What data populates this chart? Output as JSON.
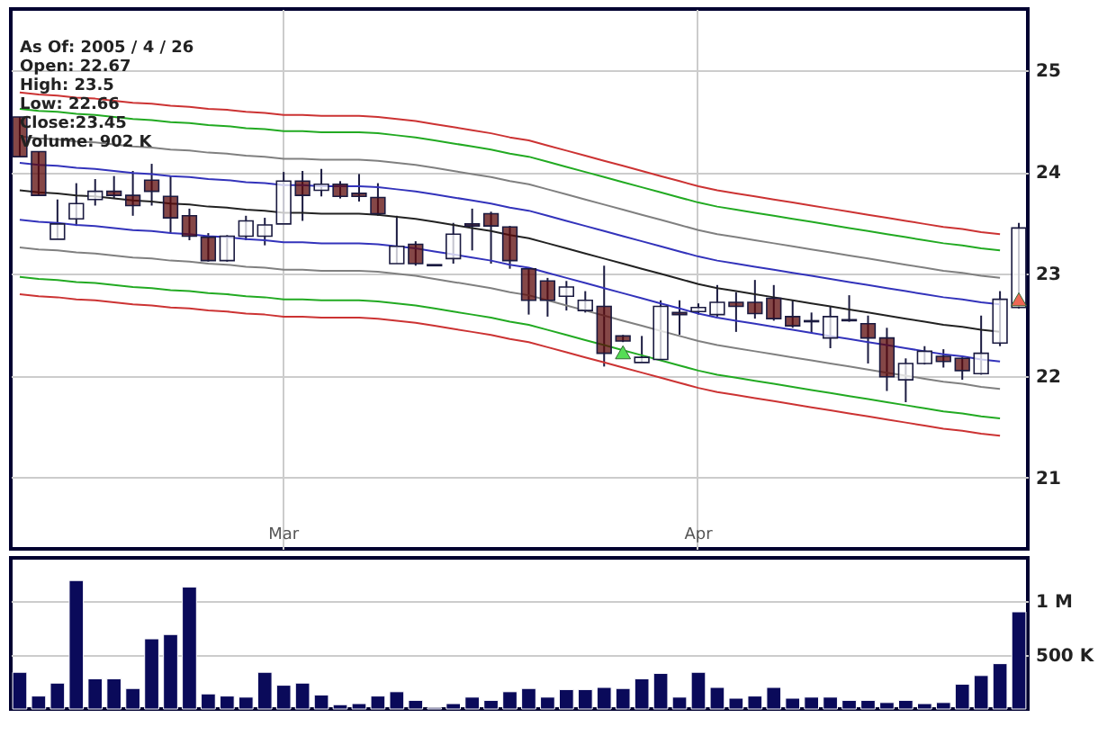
{
  "chart_data": [
    {
      "type": "candlestick",
      "categories": [
        null,
        null,
        null,
        null,
        null,
        null,
        null,
        null,
        null,
        null,
        null,
        null,
        null,
        null,
        "Mar",
        null,
        null,
        null,
        null,
        null,
        null,
        null,
        null,
        null,
        null,
        null,
        null,
        null,
        null,
        null,
        null,
        null,
        null,
        null,
        null,
        null,
        "Apr",
        null,
        null,
        null,
        null,
        null,
        null,
        null,
        null,
        null,
        null,
        null,
        null,
        null,
        null,
        null,
        null,
        null
      ],
      "ohlc": [
        [
          24.54,
          24.54,
          24.15,
          24.15
        ],
        [
          24.2,
          24.2,
          23.77,
          23.77
        ],
        [
          23.34,
          23.73,
          23.34,
          23.49
        ],
        [
          23.54,
          23.89,
          23.47,
          23.69
        ],
        [
          23.73,
          23.93,
          23.67,
          23.81
        ],
        [
          23.81,
          23.96,
          23.74,
          23.77
        ],
        [
          23.77,
          24.01,
          23.57,
          23.67
        ],
        [
          23.92,
          24.08,
          23.67,
          23.81
        ],
        [
          23.76,
          23.96,
          23.4,
          23.55
        ],
        [
          23.57,
          23.64,
          23.33,
          23.37
        ],
        [
          23.36,
          23.4,
          23.12,
          23.13
        ],
        [
          23.13,
          23.38,
          23.12,
          23.37
        ],
        [
          23.37,
          23.57,
          23.33,
          23.52
        ],
        [
          23.37,
          23.55,
          23.28,
          23.48
        ],
        [
          23.49,
          24.0,
          23.49,
          23.91
        ],
        [
          23.91,
          24.01,
          23.52,
          23.77
        ],
        [
          23.82,
          24.03,
          23.76,
          23.88
        ],
        [
          23.88,
          23.91,
          23.74,
          23.76
        ],
        [
          23.79,
          23.98,
          23.71,
          23.76
        ],
        [
          23.75,
          23.89,
          23.57,
          23.59
        ],
        [
          23.1,
          23.57,
          23.1,
          23.27
        ],
        [
          23.29,
          23.32,
          23.08,
          23.1
        ],
        [
          23.09,
          23.09,
          23.08,
          23.08
        ],
        [
          23.15,
          23.5,
          23.1,
          23.39
        ],
        [
          23.49,
          23.64,
          23.23,
          23.47
        ],
        [
          23.59,
          23.61,
          23.1,
          23.47
        ],
        [
          23.46,
          23.47,
          23.05,
          23.13
        ],
        [
          23.05,
          23.05,
          22.6,
          22.74
        ],
        [
          22.93,
          22.96,
          22.58,
          22.74
        ],
        [
          22.78,
          22.93,
          22.64,
          22.87
        ],
        [
          22.64,
          22.83,
          22.62,
          22.74
        ],
        [
          22.68,
          23.08,
          22.09,
          22.22
        ],
        [
          22.39,
          22.4,
          22.33,
          22.34
        ],
        [
          22.13,
          22.39,
          22.13,
          22.18
        ],
        [
          22.16,
          22.74,
          22.15,
          22.68
        ],
        [
          22.62,
          22.74,
          22.4,
          22.6
        ],
        [
          22.63,
          22.71,
          22.6,
          22.67
        ],
        [
          22.6,
          22.89,
          22.58,
          22.72
        ],
        [
          22.72,
          22.82,
          22.43,
          22.68
        ],
        [
          22.72,
          22.94,
          22.56,
          22.61
        ],
        [
          22.76,
          22.89,
          22.54,
          22.56
        ],
        [
          22.58,
          22.74,
          22.47,
          22.49
        ],
        [
          22.53,
          22.62,
          22.42,
          22.54
        ],
        [
          22.37,
          22.68,
          22.27,
          22.58
        ],
        [
          22.54,
          22.79,
          22.53,
          22.55
        ],
        [
          22.51,
          22.59,
          22.12,
          22.37
        ],
        [
          22.37,
          22.47,
          21.85,
          21.99
        ],
        [
          21.96,
          22.17,
          21.74,
          22.12
        ],
        [
          22.12,
          22.29,
          22.11,
          22.24
        ],
        [
          22.19,
          22.26,
          22.08,
          22.14
        ],
        [
          22.17,
          22.18,
          21.96,
          22.05
        ],
        [
          22.02,
          22.59,
          22.01,
          22.22
        ],
        [
          22.32,
          22.83,
          22.29,
          22.75
        ],
        [
          22.67,
          23.5,
          22.66,
          23.45
        ]
      ],
      "colors": [
        "#5c0a0a",
        "#5c0a0a",
        "#ffffff",
        "#ffffff",
        "#ffffff",
        "#5c0a0a",
        "#5c0a0a",
        "#5c0a0a",
        "#5c0a0a",
        "#5c0a0a",
        "#5c0a0a",
        "#ffffff",
        "#ffffff",
        "#ffffff",
        "#ffffff",
        "#5c0a0a",
        "#ffffff",
        "#5c0a0a",
        "#5c0a0a",
        "#5c0a0a",
        "#ffffff",
        "#5c0a0a",
        "#5c0a0a",
        "#ffffff",
        "#5c0a0a",
        "#5c0a0a",
        "#5c0a0a",
        "#5c0a0a",
        "#5c0a0a",
        "#ffffff",
        "#ffffff",
        "#5c0a0a",
        "#5c0a0a",
        "#ffffff",
        "#ffffff",
        "#5c0a0a",
        "#ffffff",
        "#ffffff",
        "#5c0a0a",
        "#5c0a0a",
        "#5c0a0a",
        "#5c0a0a",
        "#ffffff",
        "#ffffff",
        "#ffffff",
        "#5c0a0a",
        "#5c0a0a",
        "#ffffff",
        "#ffffff",
        "#5c0a0a",
        "#5c0a0a",
        "#ffffff",
        "#ffffff",
        "#ffffff"
      ],
      "series": [
        {
          "type": "line",
          "color": "#cc3333",
          "values": [
            24.78,
            24.76,
            24.75,
            24.73,
            24.72,
            24.7,
            24.68,
            24.67,
            24.65,
            24.64,
            24.62,
            24.61,
            24.59,
            24.58,
            24.56,
            24.56,
            24.55,
            24.55,
            24.55,
            24.54,
            24.52,
            24.5,
            24.47,
            24.44,
            24.41,
            24.38,
            24.34,
            24.31,
            24.26,
            24.21,
            24.16,
            24.11,
            24.06,
            24.01,
            23.96,
            23.91,
            23.86,
            23.82,
            23.79,
            23.76,
            23.73,
            23.7,
            23.67,
            23.64,
            23.61,
            23.58,
            23.55,
            23.52,
            23.49,
            23.46,
            23.44,
            23.41,
            23.39,
            null
          ]
        },
        {
          "type": "line",
          "color": "#22aa22",
          "values": [
            24.62,
            24.6,
            24.59,
            24.57,
            24.56,
            24.54,
            24.52,
            24.51,
            24.49,
            24.48,
            24.46,
            24.45,
            24.43,
            24.42,
            24.4,
            24.4,
            24.39,
            24.39,
            24.39,
            24.38,
            24.36,
            24.34,
            24.31,
            24.28,
            24.25,
            24.22,
            24.18,
            24.15,
            24.1,
            24.05,
            24.0,
            23.95,
            23.9,
            23.85,
            23.8,
            23.75,
            23.7,
            23.66,
            23.63,
            23.6,
            23.57,
            23.54,
            23.51,
            23.48,
            23.45,
            23.42,
            23.39,
            23.36,
            23.33,
            23.3,
            23.28,
            23.25,
            23.23,
            null
          ]
        },
        {
          "type": "line",
          "color": "#808080",
          "values": [
            24.35,
            24.33,
            24.32,
            24.3,
            24.29,
            24.27,
            24.25,
            24.24,
            24.22,
            24.21,
            24.19,
            24.18,
            24.16,
            24.15,
            24.13,
            24.13,
            24.12,
            24.12,
            24.12,
            24.11,
            24.09,
            24.07,
            24.04,
            24.01,
            23.98,
            23.95,
            23.91,
            23.88,
            23.83,
            23.78,
            23.73,
            23.68,
            23.63,
            23.58,
            23.53,
            23.48,
            23.43,
            23.39,
            23.36,
            23.33,
            23.3,
            23.27,
            23.24,
            23.21,
            23.18,
            23.15,
            23.12,
            23.09,
            23.06,
            23.03,
            23.01,
            22.98,
            22.96,
            null
          ]
        },
        {
          "type": "line",
          "color": "#3333bb",
          "values": [
            24.09,
            24.07,
            24.06,
            24.04,
            24.03,
            24.01,
            23.99,
            23.98,
            23.96,
            23.95,
            23.93,
            23.92,
            23.9,
            23.89,
            23.87,
            23.87,
            23.86,
            23.86,
            23.86,
            23.85,
            23.83,
            23.81,
            23.78,
            23.75,
            23.72,
            23.69,
            23.65,
            23.62,
            23.57,
            23.52,
            23.47,
            23.42,
            23.37,
            23.32,
            23.27,
            23.22,
            23.17,
            23.13,
            23.1,
            23.07,
            23.04,
            23.01,
            22.98,
            22.95,
            22.92,
            22.89,
            22.86,
            22.83,
            22.8,
            22.77,
            22.75,
            22.72,
            22.7,
            null
          ]
        },
        {
          "type": "line",
          "color": "#222222",
          "values": [
            23.82,
            23.8,
            23.79,
            23.77,
            23.76,
            23.74,
            23.72,
            23.71,
            23.69,
            23.68,
            23.66,
            23.65,
            23.63,
            23.62,
            23.6,
            23.6,
            23.59,
            23.59,
            23.59,
            23.58,
            23.56,
            23.54,
            23.51,
            23.48,
            23.45,
            23.42,
            23.38,
            23.35,
            23.3,
            23.25,
            23.2,
            23.15,
            23.1,
            23.05,
            23.0,
            22.95,
            22.9,
            22.86,
            22.83,
            22.8,
            22.77,
            22.74,
            22.71,
            22.68,
            22.65,
            22.62,
            22.59,
            22.56,
            22.53,
            22.5,
            22.48,
            22.45,
            22.43,
            null
          ]
        },
        {
          "type": "line",
          "color": "#3333bb",
          "values": [
            23.53,
            23.51,
            23.5,
            23.48,
            23.47,
            23.45,
            23.43,
            23.42,
            23.4,
            23.39,
            23.37,
            23.36,
            23.34,
            23.33,
            23.31,
            23.31,
            23.3,
            23.3,
            23.3,
            23.29,
            23.27,
            23.25,
            23.22,
            23.19,
            23.16,
            23.13,
            23.09,
            23.06,
            23.01,
            22.96,
            22.91,
            22.86,
            22.81,
            22.76,
            22.71,
            22.66,
            22.61,
            22.57,
            22.54,
            22.51,
            22.48,
            22.45,
            22.42,
            22.39,
            22.36,
            22.33,
            22.3,
            22.27,
            22.24,
            22.21,
            22.19,
            22.16,
            22.14,
            null
          ]
        },
        {
          "type": "line",
          "color": "#808080",
          "values": [
            23.26,
            23.24,
            23.23,
            23.21,
            23.2,
            23.18,
            23.16,
            23.15,
            23.13,
            23.12,
            23.1,
            23.09,
            23.07,
            23.06,
            23.04,
            23.04,
            23.03,
            23.03,
            23.03,
            23.02,
            23.0,
            22.98,
            22.95,
            22.92,
            22.89,
            22.86,
            22.82,
            22.79,
            22.74,
            22.69,
            22.64,
            22.59,
            22.54,
            22.49,
            22.44,
            22.39,
            22.34,
            22.3,
            22.27,
            22.24,
            22.21,
            22.18,
            22.15,
            22.12,
            22.09,
            22.06,
            22.03,
            22.0,
            21.97,
            21.94,
            21.92,
            21.89,
            21.87,
            null
          ]
        },
        {
          "type": "line",
          "color": "#22aa22",
          "values": [
            22.97,
            22.95,
            22.94,
            22.92,
            22.91,
            22.89,
            22.87,
            22.86,
            22.84,
            22.83,
            22.81,
            22.8,
            22.78,
            22.77,
            22.75,
            22.75,
            22.74,
            22.74,
            22.74,
            22.73,
            22.71,
            22.69,
            22.66,
            22.63,
            22.6,
            22.57,
            22.53,
            22.5,
            22.45,
            22.4,
            22.35,
            22.3,
            22.25,
            22.2,
            22.15,
            22.1,
            22.05,
            22.01,
            21.98,
            21.95,
            21.92,
            21.89,
            21.86,
            21.83,
            21.8,
            21.77,
            21.74,
            21.71,
            21.68,
            21.65,
            21.63,
            21.6,
            21.58,
            null
          ]
        },
        {
          "type": "line",
          "color": "#cc3333",
          "values": [
            22.8,
            22.78,
            22.77,
            22.75,
            22.74,
            22.72,
            22.7,
            22.69,
            22.67,
            22.66,
            22.64,
            22.63,
            22.61,
            22.6,
            22.58,
            22.58,
            22.57,
            22.57,
            22.57,
            22.56,
            22.54,
            22.52,
            22.49,
            22.46,
            22.43,
            22.4,
            22.36,
            22.33,
            22.28,
            22.23,
            22.18,
            22.13,
            22.08,
            22.03,
            21.98,
            21.93,
            21.88,
            21.84,
            21.81,
            21.78,
            21.75,
            21.72,
            21.69,
            21.66,
            21.63,
            21.6,
            21.57,
            21.54,
            21.51,
            21.48,
            21.46,
            21.43,
            21.41,
            null
          ]
        },
        {
          "type": "scatter",
          "marker": "triangle",
          "color": "#55dd55",
          "values": [
            null,
            null,
            null,
            null,
            null,
            null,
            null,
            null,
            null,
            null,
            null,
            null,
            null,
            null,
            null,
            null,
            null,
            null,
            null,
            null,
            null,
            null,
            null,
            null,
            null,
            null,
            null,
            null,
            null,
            null,
            null,
            null,
            22.23,
            null,
            null,
            null,
            null,
            null,
            null,
            null,
            null,
            null,
            null,
            null,
            null,
            null,
            null,
            null,
            null,
            null,
            null,
            null,
            null,
            null
          ]
        },
        {
          "type": "scatter",
          "marker": "triangle",
          "color": "#ee6655",
          "values": [
            null,
            null,
            null,
            null,
            null,
            null,
            null,
            null,
            null,
            null,
            null,
            null,
            null,
            null,
            null,
            null,
            null,
            null,
            null,
            null,
            null,
            null,
            null,
            null,
            null,
            null,
            null,
            null,
            null,
            null,
            null,
            null,
            null,
            null,
            null,
            null,
            null,
            null,
            null,
            null,
            null,
            null,
            null,
            null,
            null,
            null,
            null,
            null,
            null,
            null,
            null,
            null,
            null,
            22.75
          ]
        }
      ],
      "ylim": [
        20.3,
        25.6
      ],
      "yticks": [
        21,
        22,
        23,
        24,
        25
      ],
      "grid": true,
      "annotations": [
        "As Of: 2005 / 4 / 26",
        "Open: 22.67",
        "High: 23.5",
        "Low: 22.66",
        "Close:23.45",
        "Volume: 902 K"
      ]
    },
    {
      "type": "bar",
      "categories": [
        null,
        null,
        null,
        null,
        null,
        null,
        null,
        null,
        null,
        null,
        null,
        null,
        null,
        null,
        null,
        null,
        null,
        null,
        null,
        null,
        null,
        null,
        null,
        null,
        null,
        null,
        null,
        null,
        null,
        null,
        null,
        null,
        null,
        null,
        null,
        null,
        null,
        null,
        null,
        null,
        null,
        null,
        null,
        null,
        null,
        null,
        null,
        null,
        null,
        null,
        null,
        null,
        null,
        null
      ],
      "values": [
        340000,
        120000,
        240000,
        1190000,
        280000,
        280000,
        190000,
        650000,
        690000,
        1130000,
        140000,
        120000,
        110000,
        340000,
        220000,
        240000,
        130000,
        40000,
        50000,
        120000,
        160000,
        80000,
        10000,
        50000,
        110000,
        80000,
        160000,
        190000,
        110000,
        180000,
        180000,
        200000,
        190000,
        280000,
        330000,
        110000,
        340000,
        200000,
        100000,
        120000,
        200000,
        100000,
        110000,
        110000,
        80000,
        80000,
        60000,
        80000,
        50000,
        60000,
        230000,
        310000,
        420000,
        900000
      ],
      "color": "#0a0a5a",
      "ylim": [
        0,
        1400000
      ],
      "yticks": [
        {
          "value": 500000,
          "label": "500 K"
        },
        {
          "value": 1000000,
          "label": "1 M"
        }
      ],
      "grid": "y",
      "tick_labels": "y"
    }
  ]
}
